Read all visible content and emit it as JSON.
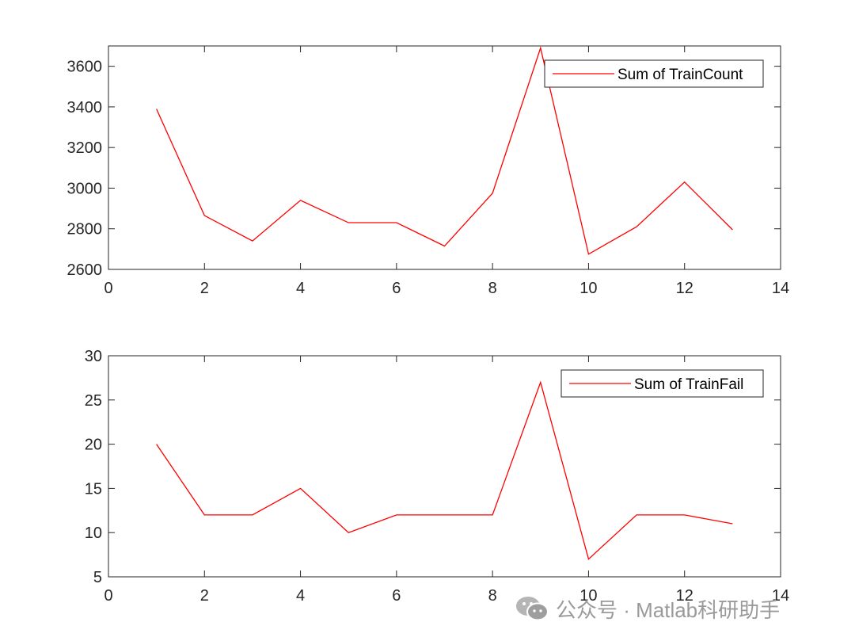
{
  "chart_data": [
    {
      "type": "line",
      "x": [
        1,
        2,
        3,
        4,
        5,
        6,
        7,
        8,
        9,
        10,
        11,
        12,
        13
      ],
      "series": [
        {
          "name": "Sum of TrainCount",
          "color": "#ff0000",
          "values": [
            3390,
            2865,
            2740,
            2940,
            2830,
            2830,
            2715,
            2975,
            3690,
            2675,
            2810,
            3030,
            2795
          ]
        }
      ],
      "xlim": [
        0,
        14
      ],
      "ylim": [
        2600,
        3700
      ],
      "xticks": [
        0,
        2,
        4,
        6,
        8,
        10,
        12,
        14
      ],
      "yticks": [
        2600,
        2800,
        3000,
        3200,
        3400,
        3600
      ],
      "legend": "top-right",
      "grid": false
    },
    {
      "type": "line",
      "x": [
        1,
        2,
        3,
        4,
        5,
        6,
        7,
        8,
        9,
        10,
        11,
        12,
        13
      ],
      "series": [
        {
          "name": "Sum of TrainFail",
          "color": "#ff0000",
          "values": [
            20,
            12,
            12,
            15,
            10,
            12,
            12,
            12,
            27,
            7,
            12,
            12,
            11
          ]
        }
      ],
      "xlim": [
        0,
        14
      ],
      "ylim": [
        5,
        30
      ],
      "xticks": [
        0,
        2,
        4,
        6,
        8,
        10,
        12,
        14
      ],
      "yticks": [
        5,
        10,
        15,
        20,
        25,
        30
      ],
      "legend": "top-right",
      "grid": false
    }
  ],
  "watermark": {
    "text": "公众号 · Matlab科研助手",
    "icon": "wechat-icon",
    "color": "#9a9a9a"
  }
}
